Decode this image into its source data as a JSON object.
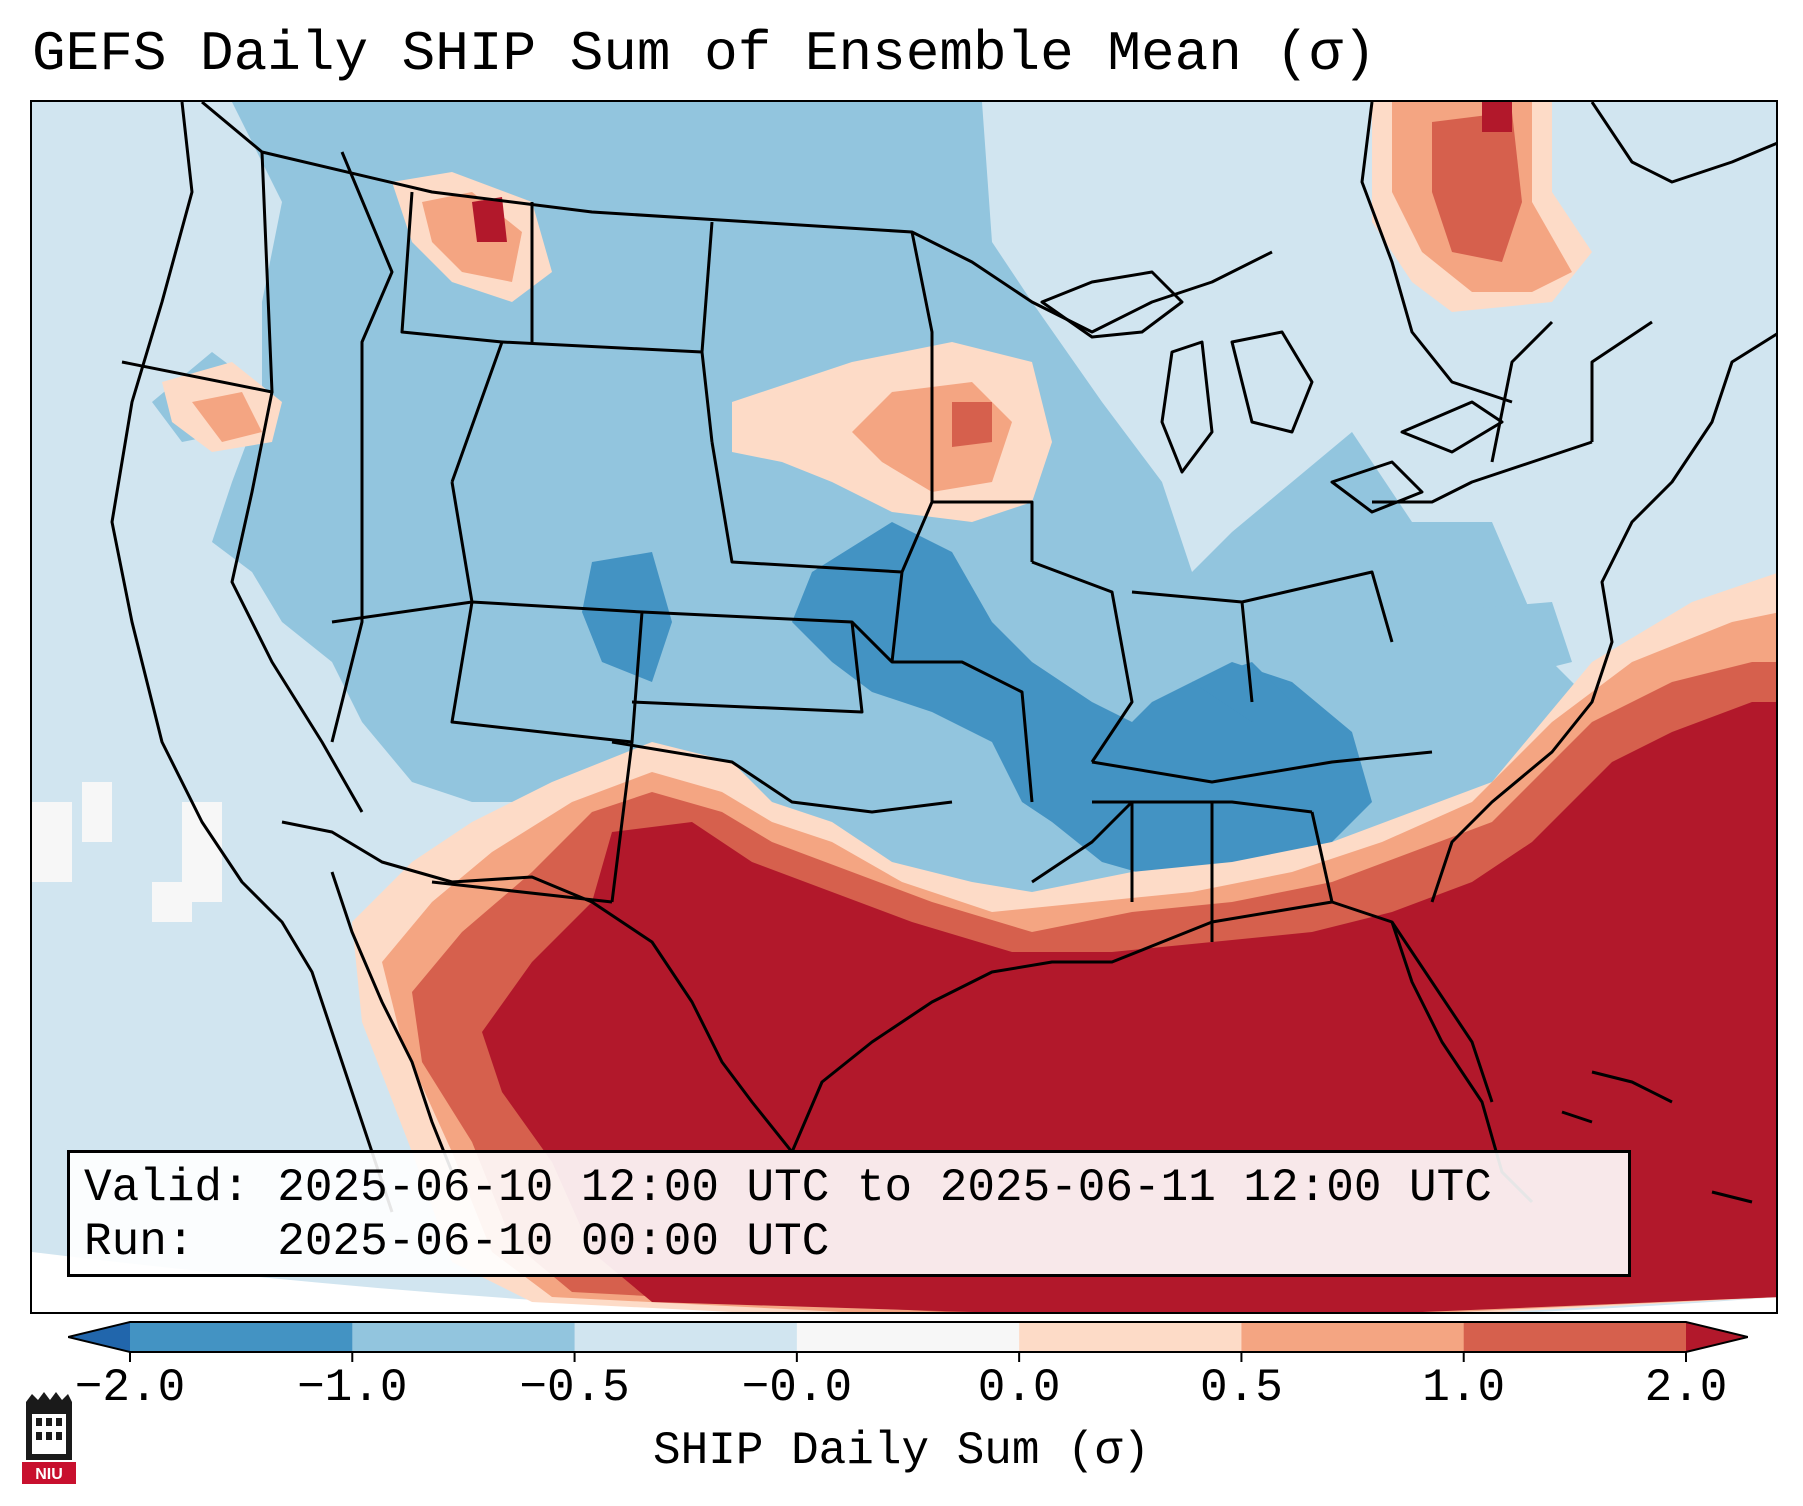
{
  "title": "GEFS Daily SHIP Sum of Ensemble Mean (σ)",
  "info": {
    "valid_label": "Valid:",
    "valid_value": "2025-06-10 12:00 UTC to 2025-06-11 12:00 UTC",
    "run_label": "Run:",
    "run_value": "2025-06-10 00:00 UTC"
  },
  "colorbar": {
    "label": "SHIP Daily Sum (σ)",
    "ticks": [
      "−2.0",
      "−1.0",
      "−0.5",
      "−0.0",
      "0.0",
      "0.5",
      "1.0",
      "2.0"
    ],
    "bins": [
      {
        "range": "< -2.0",
        "color": "#2166ac"
      },
      {
        "range": "-2.0 to -1.0",
        "color": "#4393c3"
      },
      {
        "range": "-1.0 to -0.5",
        "color": "#92c5de"
      },
      {
        "range": "-0.5 to -0.0",
        "color": "#d1e5f0"
      },
      {
        "range": "-0.0 to 0.0",
        "color": "#f7f7f7"
      },
      {
        "range": "0.0 to 0.5",
        "color": "#fddbc7"
      },
      {
        "range": "0.5 to 1.0",
        "color": "#f4a582"
      },
      {
        "range": "1.0 to 2.0",
        "color": "#d6604d"
      },
      {
        "range": "> 2.0",
        "color": "#b2182b"
      }
    ]
  },
  "logo": {
    "text": "NIU"
  }
}
